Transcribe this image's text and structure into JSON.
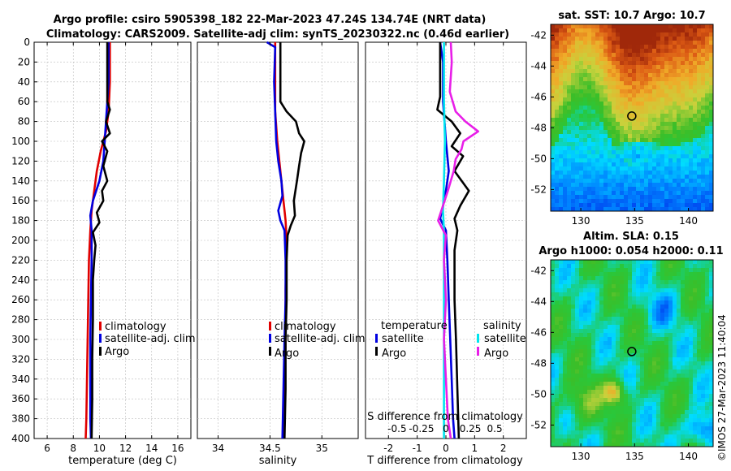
{
  "header": {
    "line1": "Argo profile: csiro 5905398_182 22-Mar-2023 47.24S 134.74E (NRT data)",
    "line2": "Climatology: CARS2009. Satellite-adj clim: synTS_20230322.nc (0.46d earlier)"
  },
  "watermark": "©IMOS 27-Mar-2023 11:40:04",
  "colors": {
    "climatology": "#e00000",
    "satellite": "#0000e0",
    "argo": "#000000",
    "sat_salinity": "#00e5ee",
    "argo_salinity": "#e81ee8"
  },
  "chart_data": [
    {
      "type": "line",
      "id": "temperature",
      "xlabel": "temperature (deg C)",
      "ylabel": "",
      "xlim": [
        5,
        17
      ],
      "ylim": [
        400,
        0
      ],
      "xticks": [
        6,
        8,
        10,
        12,
        14,
        16
      ],
      "xtick_labels": [
        "6",
        "8",
        "10",
        "12",
        "14",
        "16"
      ],
      "yticks": [
        0,
        20,
        40,
        60,
        80,
        100,
        120,
        140,
        160,
        180,
        200,
        220,
        240,
        260,
        280,
        300,
        320,
        340,
        360,
        380,
        400
      ],
      "ytick_labels": [
        "0",
        "20",
        "40",
        "60",
        "80",
        "100",
        "120",
        "140",
        "160",
        "180",
        "200",
        "220",
        "240",
        "260",
        "280",
        "300",
        "320",
        "340",
        "360",
        "380",
        "400"
      ],
      "legend": [
        "climatology",
        "satellite-adj. clim",
        "Argo"
      ],
      "series": [
        {
          "name": "climatology",
          "color": "#e00000",
          "points": [
            [
              10.8,
              0
            ],
            [
              10.8,
              40
            ],
            [
              10.7,
              70
            ],
            [
              10.5,
              90
            ],
            [
              10.1,
              110
            ],
            [
              9.8,
              130
            ],
            [
              9.6,
              150
            ],
            [
              9.4,
              170
            ],
            [
              9.3,
              190
            ],
            [
              9.2,
              220
            ],
            [
              9.15,
              260
            ],
            [
              9.1,
              300
            ],
            [
              9.05,
              340
            ],
            [
              9.0,
              380
            ],
            [
              8.95,
              400
            ]
          ]
        },
        {
          "name": "satellite-adj. clim",
          "color": "#0000e0",
          "points": [
            [
              10.7,
              0
            ],
            [
              10.7,
              40
            ],
            [
              10.6,
              60
            ],
            [
              10.5,
              80
            ],
            [
              10.4,
              100
            ],
            [
              10.3,
              120
            ],
            [
              10.0,
              140
            ],
            [
              9.5,
              160
            ],
            [
              9.3,
              175
            ],
            [
              9.4,
              190
            ],
            [
              9.4,
              220
            ],
            [
              9.35,
              260
            ],
            [
              9.3,
              300
            ],
            [
              9.3,
              340
            ],
            [
              9.3,
              380
            ],
            [
              9.35,
              400
            ]
          ]
        },
        {
          "name": "Argo",
          "color": "#000000",
          "points": [
            [
              10.6,
              0
            ],
            [
              10.6,
              60
            ],
            [
              10.8,
              68
            ],
            [
              10.5,
              80
            ],
            [
              10.8,
              92
            ],
            [
              10.2,
              100
            ],
            [
              10.6,
              110
            ],
            [
              10.3,
              125
            ],
            [
              10.6,
              140
            ],
            [
              10.2,
              150
            ],
            [
              10.3,
              160
            ],
            [
              9.8,
              172
            ],
            [
              10.0,
              182
            ],
            [
              9.5,
              192
            ],
            [
              9.7,
              205
            ],
            [
              9.6,
              220
            ],
            [
              9.5,
              240
            ],
            [
              9.5,
              280
            ],
            [
              9.45,
              320
            ],
            [
              9.45,
              360
            ],
            [
              9.4,
              400
            ]
          ]
        }
      ]
    },
    {
      "type": "line",
      "id": "salinity",
      "xlabel": "salinity",
      "xlim": [
        33.8,
        35.35
      ],
      "ylim": [
        400,
        0
      ],
      "xticks": [
        34,
        34.5,
        35
      ],
      "xtick_labels": [
        "34",
        "34.5",
        "35"
      ],
      "legend": [
        "climatology",
        "satellite-adj. clim",
        "Argo"
      ],
      "series": [
        {
          "name": "climatology",
          "color": "#e00000",
          "points": [
            [
              34.55,
              0
            ],
            [
              34.55,
              40
            ],
            [
              34.55,
              70
            ],
            [
              34.57,
              100
            ],
            [
              34.6,
              130
            ],
            [
              34.63,
              160
            ],
            [
              34.65,
              180
            ],
            [
              34.66,
              200
            ],
            [
              34.65,
              250
            ],
            [
              34.65,
              300
            ],
            [
              34.64,
              350
            ],
            [
              34.63,
              400
            ]
          ]
        },
        {
          "name": "satellite-adj. clim",
          "color": "#0000e0",
          "points": [
            [
              34.47,
              0
            ],
            [
              34.55,
              5
            ],
            [
              34.54,
              40
            ],
            [
              34.55,
              70
            ],
            [
              34.56,
              100
            ],
            [
              34.58,
              120
            ],
            [
              34.61,
              140
            ],
            [
              34.62,
              155
            ],
            [
              34.58,
              170
            ],
            [
              34.6,
              180
            ],
            [
              34.64,
              190
            ],
            [
              34.65,
              220
            ],
            [
              34.65,
              260
            ],
            [
              34.64,
              300
            ],
            [
              34.63,
              350
            ],
            [
              34.62,
              400
            ]
          ]
        },
        {
          "name": "Argo",
          "color": "#000000",
          "points": [
            [
              34.6,
              0
            ],
            [
              34.6,
              60
            ],
            [
              34.66,
              70
            ],
            [
              34.75,
              80
            ],
            [
              34.78,
              92
            ],
            [
              34.83,
              100
            ],
            [
              34.8,
              112
            ],
            [
              34.78,
              125
            ],
            [
              34.76,
              140
            ],
            [
              34.73,
              160
            ],
            [
              34.74,
              175
            ],
            [
              34.7,
              185
            ],
            [
              34.67,
              195
            ],
            [
              34.66,
              220
            ],
            [
              34.66,
              260
            ],
            [
              34.65,
              300
            ],
            [
              34.65,
              350
            ],
            [
              34.64,
              400
            ]
          ]
        }
      ]
    },
    {
      "type": "line",
      "id": "differences",
      "xlabel": "T difference from climatology",
      "xlabel_top": "S difference from climatology",
      "xlim": [
        -2.8,
        2.8
      ],
      "ylim": [
        400,
        0
      ],
      "xticks": [
        -2,
        -1,
        0,
        1,
        2
      ],
      "xtick_labels": [
        "-2",
        "-1",
        "0",
        "1",
        "2"
      ],
      "s_xticks": [
        -0.5,
        -0.25,
        0,
        0.25,
        0.5
      ],
      "s_xtick_labels": [
        "-0.5",
        "-0.25",
        "0",
        "0.25",
        "0.5"
      ],
      "legend_t_title": "temperature",
      "legend_s_title": "salinity",
      "legend_t": [
        "satellite",
        "Argo"
      ],
      "legend_s": [
        "satellite",
        "Argo"
      ],
      "series": [
        {
          "name": "T satellite",
          "color": "#0000e0",
          "points": [
            [
              -0.2,
              0
            ],
            [
              -0.1,
              20
            ],
            [
              -0.1,
              60
            ],
            [
              0.0,
              100
            ],
            [
              0.1,
              130
            ],
            [
              0.0,
              150
            ],
            [
              -0.1,
              165
            ],
            [
              -0.2,
              178
            ],
            [
              0.0,
              190
            ],
            [
              0.05,
              220
            ],
            [
              0.1,
              260
            ],
            [
              0.15,
              300
            ],
            [
              0.2,
              340
            ],
            [
              0.25,
              380
            ],
            [
              0.3,
              400
            ]
          ]
        },
        {
          "name": "T Argo",
          "color": "#000000",
          "points": [
            [
              -0.2,
              0
            ],
            [
              -0.2,
              55
            ],
            [
              -0.3,
              68
            ],
            [
              0.2,
              80
            ],
            [
              0.5,
              92
            ],
            [
              0.2,
              105
            ],
            [
              0.6,
              115
            ],
            [
              0.3,
              130
            ],
            [
              0.8,
              150
            ],
            [
              0.5,
              165
            ],
            [
              0.3,
              178
            ],
            [
              0.4,
              190
            ],
            [
              0.3,
              210
            ],
            [
              0.3,
              260
            ],
            [
              0.35,
              300
            ],
            [
              0.4,
              350
            ],
            [
              0.45,
              400
            ]
          ]
        },
        {
          "name": "S satellite",
          "color": "#00e5ee",
          "points": [
            [
              -0.02,
              0
            ],
            [
              -0.02,
              60
            ],
            [
              -0.01,
              100
            ],
            [
              -0.02,
              140
            ],
            [
              -0.03,
              170
            ],
            [
              -0.02,
              190
            ],
            [
              -0.02,
              220
            ],
            [
              -0.02,
              260
            ],
            [
              -0.02,
              300
            ],
            [
              -0.02,
              340
            ],
            [
              -0.02,
              400
            ]
          ]
        },
        {
          "name": "S Argo",
          "color": "#e81ee8",
          "points": [
            [
              0.05,
              0
            ],
            [
              0.06,
              20
            ],
            [
              0.04,
              50
            ],
            [
              0.1,
              70
            ],
            [
              0.2,
              80
            ],
            [
              0.33,
              90
            ],
            [
              0.18,
              100
            ],
            [
              0.16,
              108
            ],
            [
              0.1,
              118
            ],
            [
              0.08,
              130
            ],
            [
              0.02,
              150
            ],
            [
              -0.03,
              165
            ],
            [
              -0.08,
              180
            ],
            [
              0.0,
              195
            ],
            [
              -0.02,
              220
            ],
            [
              0.0,
              260
            ],
            [
              -0.02,
              300
            ],
            [
              0.0,
              340
            ],
            [
              0.02,
              380
            ],
            [
              0.05,
              400
            ]
          ]
        }
      ]
    },
    {
      "type": "heatmap",
      "id": "sst_map",
      "title": "sat. SST: 10.7 Argo: 10.7",
      "xlim": [
        127.2,
        142.3
      ],
      "ylim": [
        -53.4,
        -41.3
      ],
      "xticks": [
        130,
        135,
        140
      ],
      "yticks": [
        -42,
        -44,
        -46,
        -48,
        -50,
        -52
      ],
      "xtick_labels": [
        "130",
        "135",
        "140"
      ],
      "ytick_labels": [
        "-42",
        "-44",
        "-46",
        "-48",
        "-50",
        "-52"
      ],
      "marker": {
        "lon": 134.74,
        "lat": -47.24
      }
    },
    {
      "type": "heatmap",
      "id": "sla_map",
      "title1": "Altim. SLA: 0.15",
      "title2": "Argo h1000: 0.054 h2000: 0.11",
      "xlim": [
        127.2,
        142.3
      ],
      "ylim": [
        -53.4,
        -41.3
      ],
      "xticks": [
        130,
        135,
        140
      ],
      "yticks": [
        -42,
        -44,
        -46,
        -48,
        -50,
        -52
      ],
      "xtick_labels": [
        "130",
        "135",
        "140"
      ],
      "ytick_labels": [
        "-42",
        "-44",
        "-46",
        "-48",
        "-50",
        "-52"
      ],
      "marker": {
        "lon": 134.74,
        "lat": -47.24
      }
    }
  ]
}
